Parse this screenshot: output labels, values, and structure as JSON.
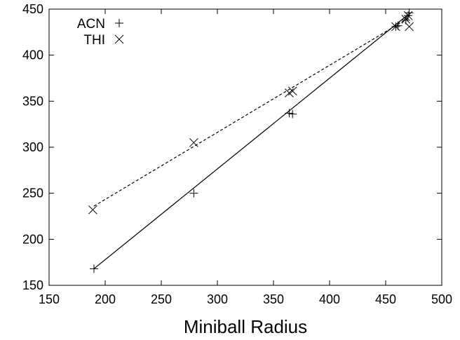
{
  "chart_data": {
    "type": "scatter",
    "title": "",
    "xlabel": "Miniball Radius",
    "ylabel": "",
    "xlim": [
      150,
      500
    ],
    "ylim": [
      150,
      450
    ],
    "xticks": [
      "150",
      "200",
      "250",
      "300",
      "350",
      "400",
      "450",
      "500"
    ],
    "yticks": [
      "150",
      "200",
      "250",
      "300",
      "350",
      "400",
      "450"
    ],
    "grid": false,
    "legend": "top-left",
    "series": [
      {
        "name": "ACN",
        "marker": "plus",
        "line_style": "solid",
        "points": [
          [
            190,
            168
          ],
          [
            279,
            250
          ],
          [
            364,
            337
          ],
          [
            367,
            336
          ],
          [
            459,
            431
          ],
          [
            461,
            432
          ],
          [
            468,
            438
          ],
          [
            470,
            443
          ],
          [
            471,
            446
          ]
        ],
        "fit_line": [
          [
            190,
            168
          ],
          [
            470,
            444
          ]
        ]
      },
      {
        "name": "THI",
        "marker": "cross",
        "line_style": "dashed",
        "points": [
          [
            189,
            232
          ],
          [
            279,
            305
          ],
          [
            364,
            359
          ],
          [
            367,
            361
          ],
          [
            459,
            431
          ],
          [
            468,
            439
          ],
          [
            470,
            443
          ],
          [
            471,
            431
          ]
        ],
        "fit_line": [
          [
            190,
            236
          ],
          [
            470,
            440
          ]
        ]
      }
    ]
  }
}
